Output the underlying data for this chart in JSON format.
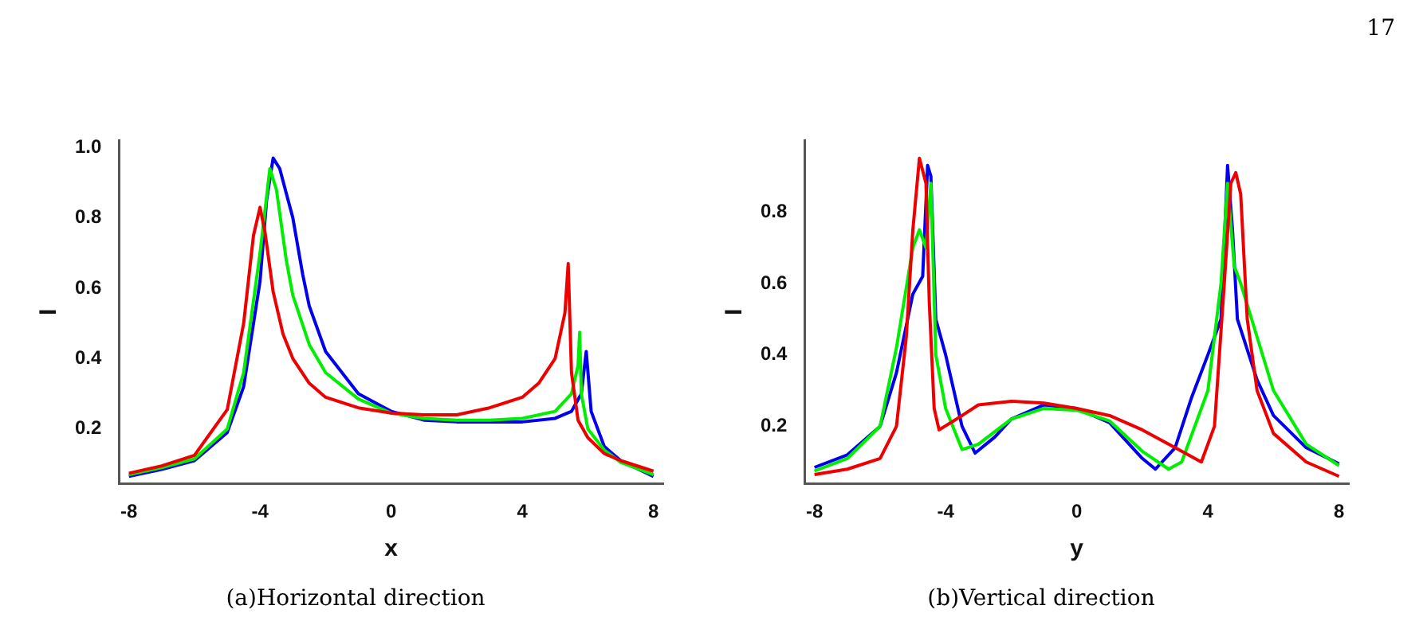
{
  "chart_data": [
    {
      "type": "line",
      "xlabel": "x",
      "ylabel": "I",
      "xlim": [
        -8.3,
        8.3
      ],
      "ylim": [
        0.045,
        1.02
      ],
      "xticks": [
        -8,
        -4,
        0,
        4,
        8
      ],
      "yticks": [
        0.2,
        0.4,
        0.6,
        0.8,
        {
          "value": 1.0,
          "label": "1.0"
        }
      ],
      "grid": false,
      "legend": false,
      "marker": "none",
      "line_style": "solid",
      "annotations": [
        "17",
        "(a)Horizontal direction"
      ],
      "series": [
        {
          "color": "#ee0000",
          "x": [
            -8,
            -7,
            -6,
            -5,
            -4.5,
            -4.2,
            -4,
            -3.85,
            -3.6,
            -3.3,
            -3,
            -2.5,
            -2,
            -1,
            0,
            1,
            2,
            3,
            4,
            4.5,
            5,
            5.3,
            5.4,
            5.5,
            5.7,
            6,
            6.5,
            7,
            8
          ],
          "values": [
            0.074,
            0.095,
            0.125,
            0.255,
            0.5,
            0.75,
            0.83,
            0.76,
            0.59,
            0.47,
            0.4,
            0.33,
            0.29,
            0.26,
            0.245,
            0.24,
            0.24,
            0.26,
            0.29,
            0.33,
            0.4,
            0.53,
            0.67,
            0.36,
            0.225,
            0.175,
            0.13,
            0.11,
            0.08
          ]
        },
        {
          "color": "#00ee00",
          "x": [
            -8,
            -7,
            -6,
            -5,
            -4.5,
            -4,
            -3.7,
            -3.5,
            -3.2,
            -3,
            -2.5,
            -2,
            -1,
            0,
            1,
            2,
            3,
            4,
            5,
            5.5,
            5.7,
            5.75,
            5.8,
            6,
            6.5,
            7,
            8
          ],
          "values": [
            0.07,
            0.09,
            0.115,
            0.2,
            0.36,
            0.7,
            0.94,
            0.88,
            0.68,
            0.58,
            0.44,
            0.36,
            0.285,
            0.245,
            0.23,
            0.225,
            0.225,
            0.23,
            0.25,
            0.3,
            0.38,
            0.475,
            0.3,
            0.2,
            0.14,
            0.105,
            0.07
          ]
        },
        {
          "color": "#0000ee",
          "x": [
            -8,
            -7,
            -6,
            -5,
            -4.5,
            -4,
            -3.8,
            -3.6,
            -3.4,
            -3,
            -2.7,
            -2.5,
            -2,
            -1,
            0,
            1,
            2,
            3,
            4,
            5,
            5.5,
            5.8,
            5.95,
            6.1,
            6.5,
            7,
            8
          ],
          "values": [
            0.065,
            0.085,
            0.11,
            0.19,
            0.32,
            0.62,
            0.85,
            0.97,
            0.94,
            0.8,
            0.64,
            0.55,
            0.42,
            0.3,
            0.25,
            0.225,
            0.22,
            0.22,
            0.22,
            0.23,
            0.25,
            0.3,
            0.42,
            0.25,
            0.15,
            0.11,
            0.065
          ]
        }
      ]
    },
    {
      "type": "line",
      "xlabel": "y",
      "ylabel": "I",
      "xlim": [
        -8.3,
        8.3
      ],
      "ylim": [
        0.04,
        1.0
      ],
      "xticks": [
        -8,
        -4,
        0,
        4,
        8
      ],
      "yticks": [
        0.2,
        0.4,
        0.6,
        0.8
      ],
      "grid": false,
      "legend": false,
      "marker": "none",
      "line_style": "solid",
      "annotations": [
        "(b)Vertical direction"
      ],
      "series": [
        {
          "color": "#ee0000",
          "x": [
            -8,
            -7,
            -6,
            -5.5,
            -5.2,
            -5,
            -4.8,
            -4.6,
            -4.5,
            -4.35,
            -4.2,
            -3.5,
            -3,
            -2,
            -1,
            0,
            1,
            2,
            3,
            3.8,
            4.2,
            4.5,
            4.7,
            4.85,
            5,
            5.2,
            5.5,
            6,
            7,
            8
          ],
          "values": [
            0.065,
            0.08,
            0.11,
            0.2,
            0.45,
            0.75,
            0.95,
            0.88,
            0.55,
            0.25,
            0.19,
            0.23,
            0.26,
            0.27,
            0.265,
            0.25,
            0.23,
            0.19,
            0.14,
            0.1,
            0.2,
            0.6,
            0.88,
            0.91,
            0.85,
            0.5,
            0.3,
            0.18,
            0.1,
            0.06
          ]
        },
        {
          "color": "#00ee00",
          "x": [
            -8,
            -7,
            -6,
            -5.5,
            -5,
            -4.8,
            -4.6,
            -4.45,
            -4.3,
            -4,
            -3.5,
            -3,
            -2,
            -1,
            0,
            1,
            2,
            2.8,
            3.2,
            4,
            4.4,
            4.6,
            4.8,
            5,
            5.5,
            6,
            7,
            8
          ],
          "values": [
            0.075,
            0.11,
            0.2,
            0.42,
            0.7,
            0.75,
            0.7,
            0.88,
            0.4,
            0.25,
            0.135,
            0.15,
            0.22,
            0.25,
            0.245,
            0.215,
            0.13,
            0.08,
            0.1,
            0.3,
            0.6,
            0.88,
            0.65,
            0.6,
            0.45,
            0.3,
            0.15,
            0.09
          ]
        },
        {
          "color": "#0000ee",
          "x": [
            -8,
            -7,
            -6,
            -5.5,
            -5,
            -4.7,
            -4.55,
            -4.45,
            -4.3,
            -4,
            -3.5,
            -3.1,
            -2.5,
            -2,
            -1,
            0,
            1,
            2,
            2.4,
            3,
            3.5,
            4,
            4.4,
            4.6,
            4.75,
            4.9,
            5.5,
            6,
            7,
            8
          ],
          "values": [
            0.085,
            0.12,
            0.2,
            0.35,
            0.57,
            0.62,
            0.93,
            0.9,
            0.5,
            0.4,
            0.2,
            0.125,
            0.17,
            0.22,
            0.26,
            0.25,
            0.21,
            0.11,
            0.08,
            0.14,
            0.28,
            0.4,
            0.5,
            0.93,
            0.75,
            0.5,
            0.33,
            0.23,
            0.14,
            0.095
          ]
        }
      ]
    }
  ]
}
